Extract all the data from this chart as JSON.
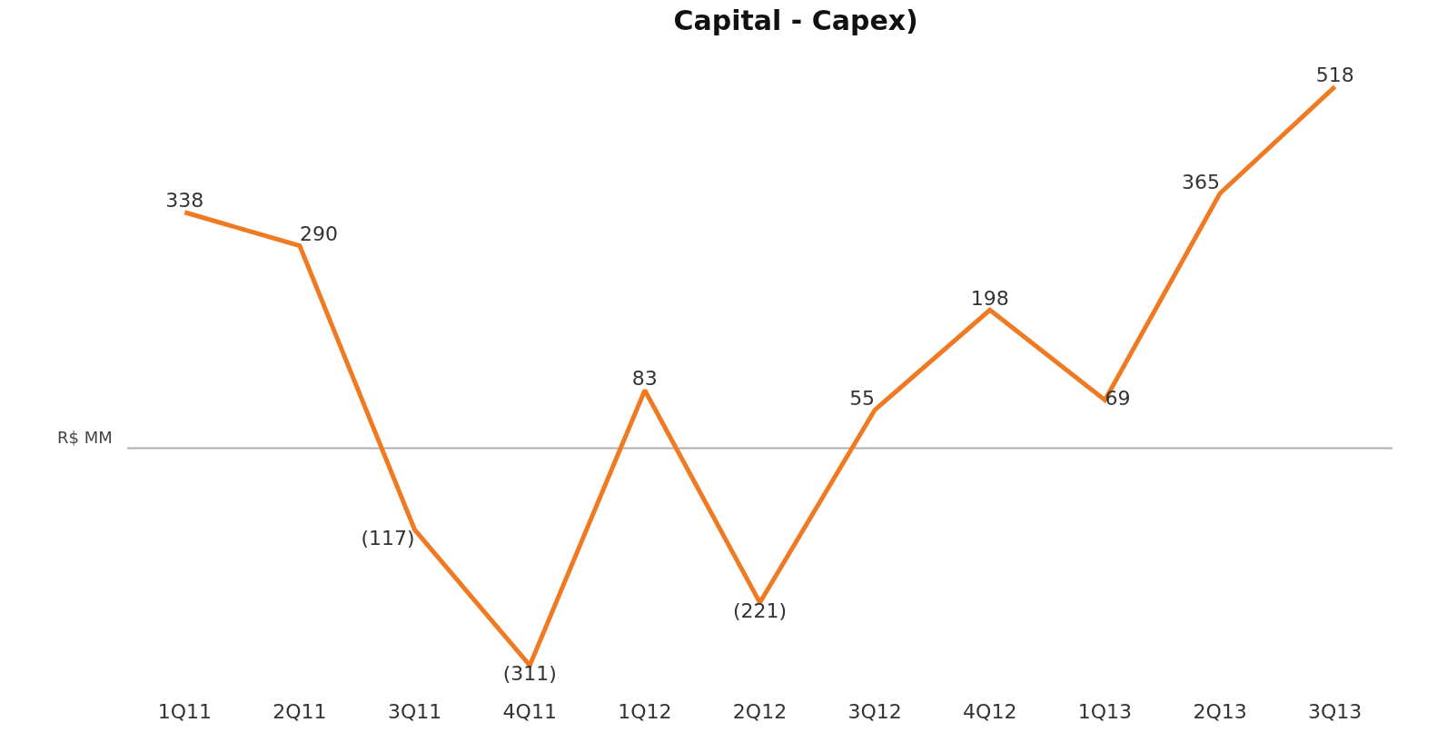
{
  "chart_data": {
    "type": "line",
    "title": "Capital - Capex)",
    "ylabel": "R$ MM",
    "categories": [
      "1Q11",
      "2Q11",
      "3Q11",
      "4Q11",
      "1Q12",
      "2Q12",
      "3Q12",
      "4Q12",
      "1Q13",
      "2Q13",
      "3Q13"
    ],
    "series": [
      {
        "color": "#f07a22",
        "values": [
          338,
          290,
          -117,
          -311,
          83,
          -221,
          55,
          198,
          69,
          365,
          518
        ],
        "value_labels": [
          "338",
          "290",
          "(117)",
          "(311)",
          "83",
          "(221)",
          "55",
          "198",
          "69",
          "365",
          "518"
        ]
      }
    ],
    "tick_labels": "x",
    "grid": false,
    "marker": "none",
    "line_style": "solid",
    "ref_lines": [
      {
        "axis": "y",
        "value": 0,
        "color": "#b0b0b0"
      }
    ]
  }
}
